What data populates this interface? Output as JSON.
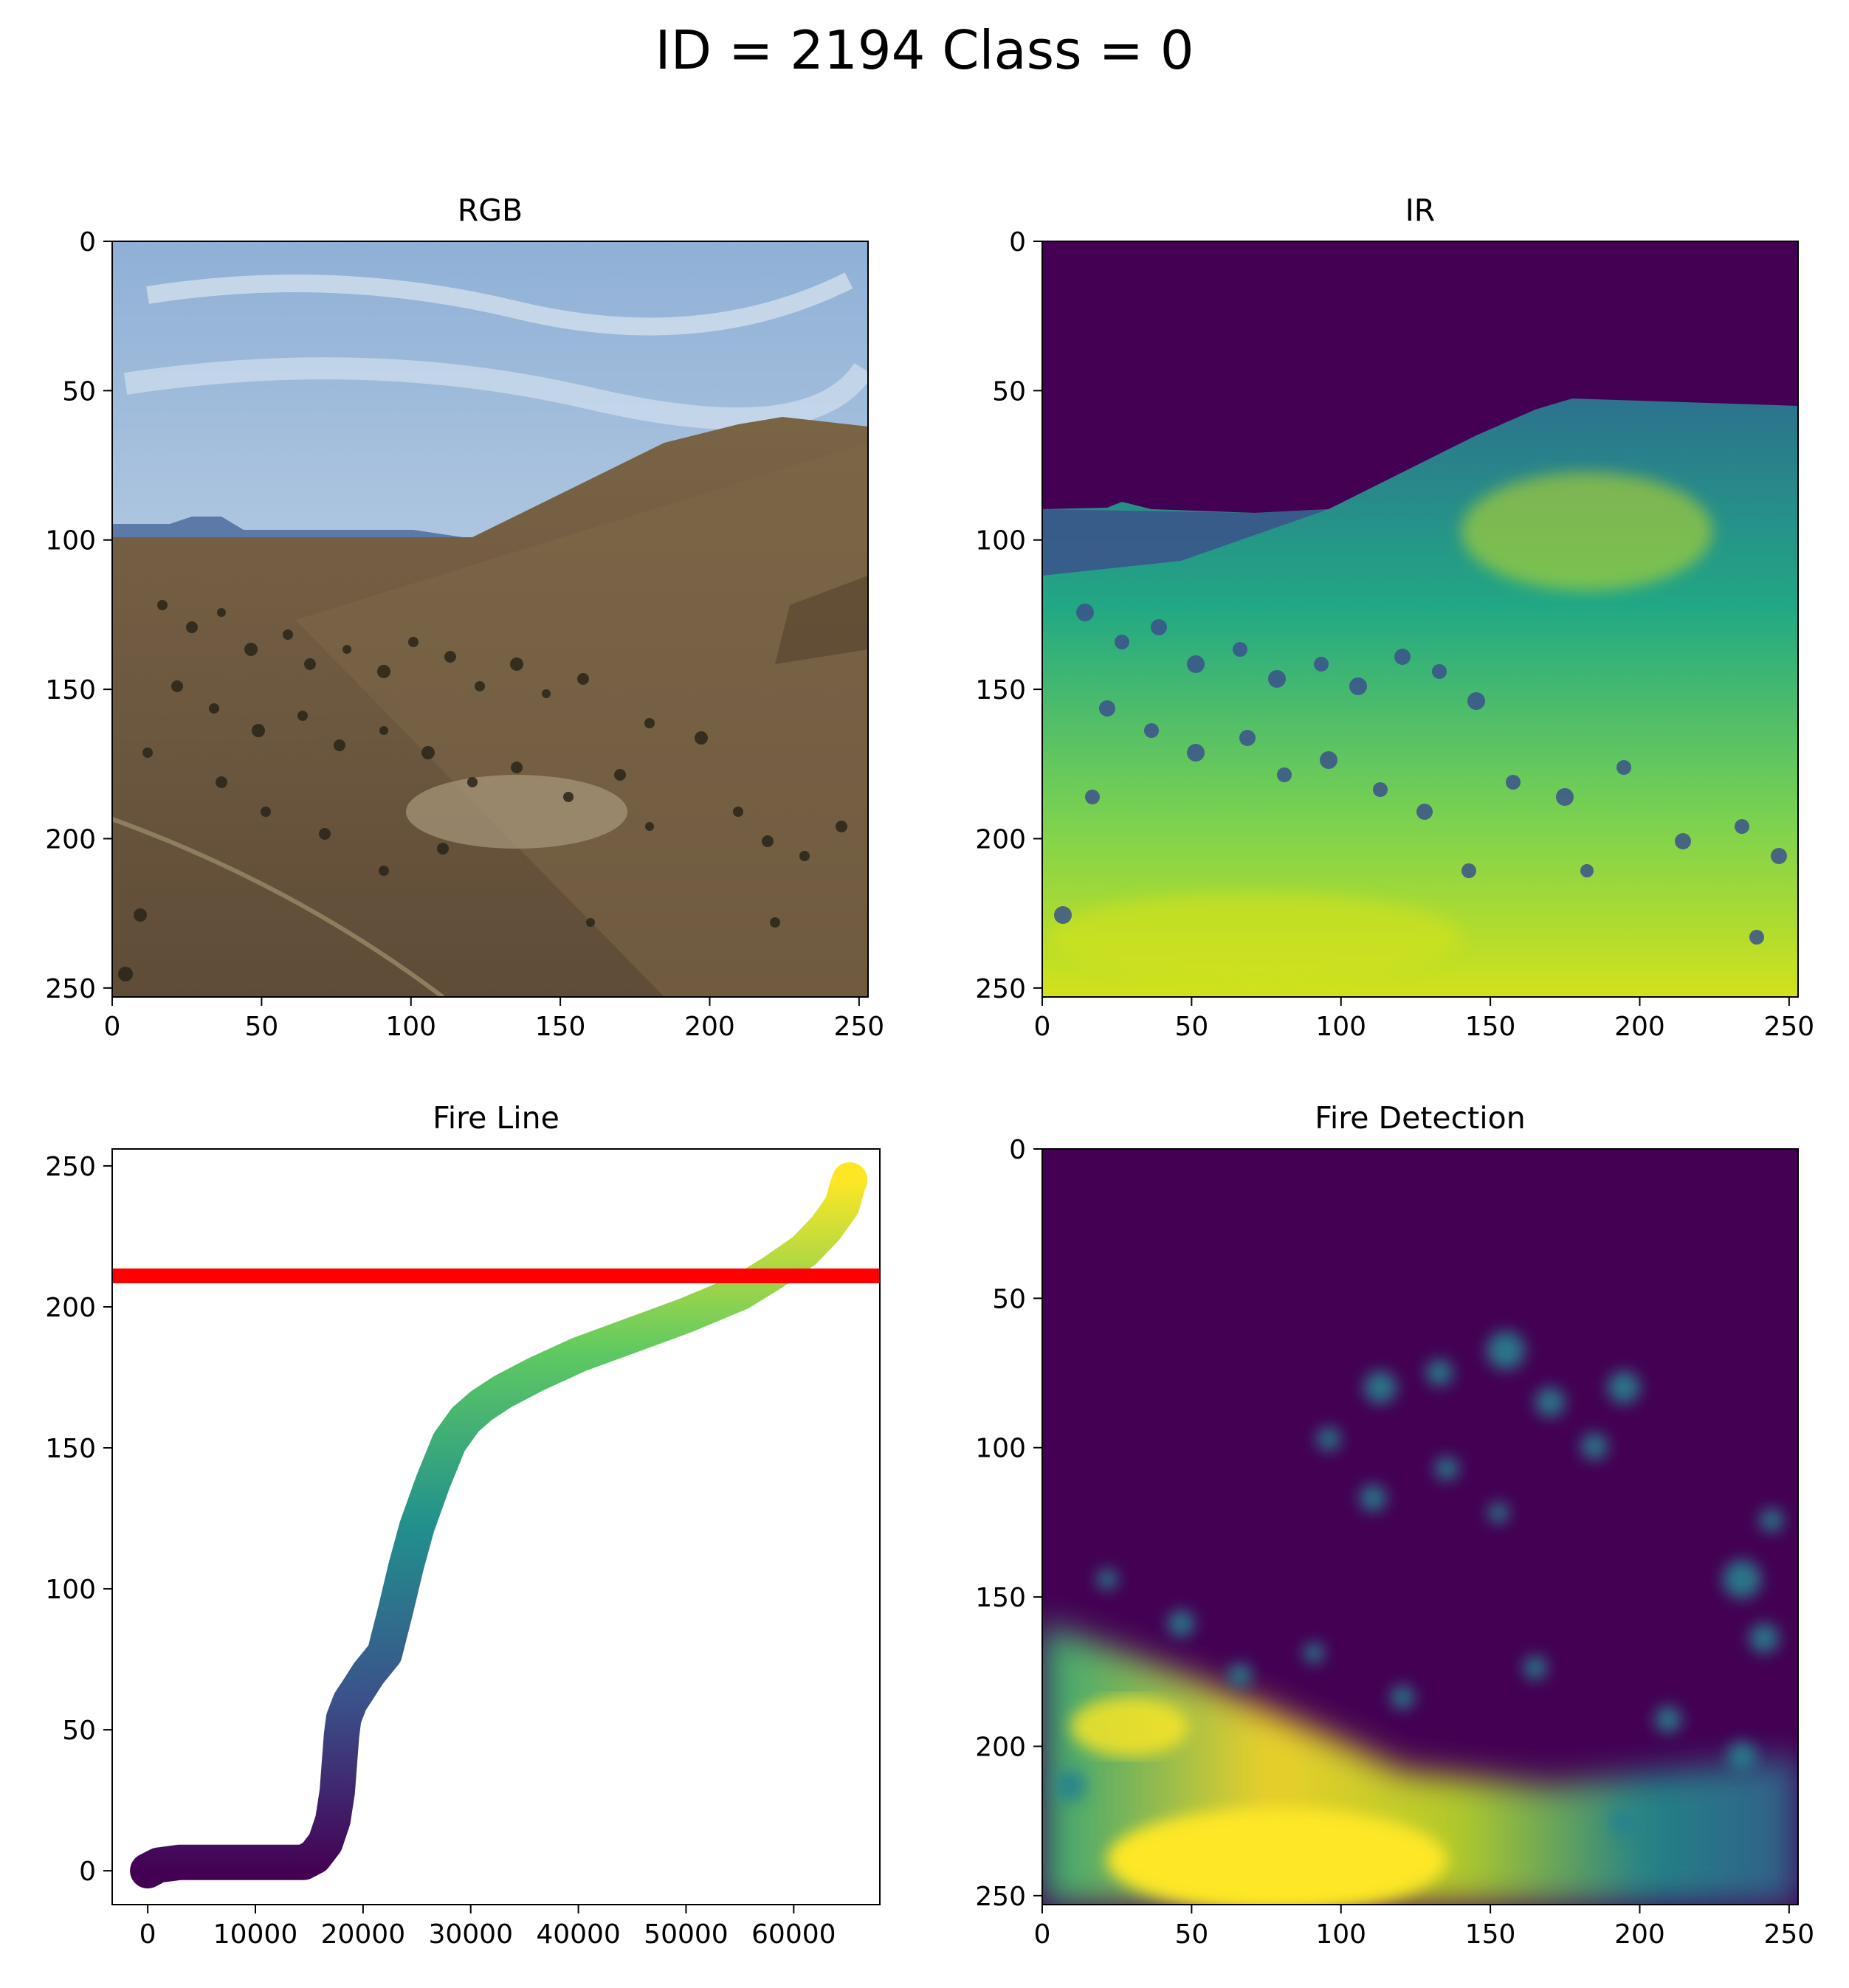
{
  "figure": {
    "suptitle": "ID = 2194 Class = 0"
  },
  "colors": {
    "sky": "#a9c2dd",
    "ground": "#6e5a40",
    "dark_brown": "#4a3b2a",
    "viridis_low": "#440154",
    "viridis_mid": "#21908d",
    "viridis_high": "#fde725",
    "threshold_line": "#ff0000"
  },
  "chart_data": [
    {
      "type": "heatmap",
      "title": "RGB",
      "content": "rgb-photo",
      "xlim": [
        0,
        253
      ],
      "ylim": [
        253,
        0
      ],
      "xticks": [
        0,
        50,
        100,
        150,
        200,
        250
      ],
      "yticks": [
        0,
        50,
        100,
        150,
        200,
        250
      ]
    },
    {
      "type": "heatmap",
      "title": "IR",
      "colormap": "viridis",
      "xlim": [
        0,
        253
      ],
      "ylim": [
        253,
        0
      ],
      "xticks": [
        0,
        50,
        100,
        150,
        200,
        250
      ],
      "yticks": [
        0,
        50,
        100,
        150,
        200,
        250
      ]
    },
    {
      "type": "scatter",
      "title": "Fire Line",
      "colormap": "viridis",
      "xlim": [
        -3300,
        68000
      ],
      "ylim": [
        -12,
        256
      ],
      "xticks": [
        0,
        10000,
        20000,
        30000,
        40000,
        50000,
        60000
      ],
      "yticks": [
        0,
        50,
        100,
        150,
        200,
        250
      ],
      "x": [
        0,
        1000,
        3000,
        8000,
        12000,
        14500,
        15500,
        16500,
        17200,
        17600,
        17800,
        18000,
        18200,
        18800,
        19500,
        20500,
        22000,
        23000,
        24000,
        25000,
        26500,
        28000,
        29500,
        31000,
        33000,
        36000,
        40000,
        45000,
        50000,
        55000,
        58000,
        61000,
        63000,
        64500,
        65000,
        65200
      ],
      "y": [
        0,
        2,
        3,
        3,
        3,
        3,
        5,
        10,
        18,
        28,
        38,
        48,
        54,
        60,
        64,
        70,
        77,
        92,
        108,
        122,
        138,
        152,
        160,
        165,
        170,
        176,
        183,
        190,
        197,
        205,
        212,
        220,
        228,
        236,
        243,
        245
      ],
      "hline": {
        "y": 211,
        "color": "#ff0000"
      }
    },
    {
      "type": "heatmap",
      "title": "Fire Detection",
      "colormap": "viridis",
      "xlim": [
        0,
        253
      ],
      "ylim": [
        253,
        0
      ],
      "xticks": [
        0,
        50,
        100,
        150,
        200,
        250
      ],
      "yticks": [
        0,
        50,
        100,
        150,
        200,
        250
      ]
    }
  ]
}
